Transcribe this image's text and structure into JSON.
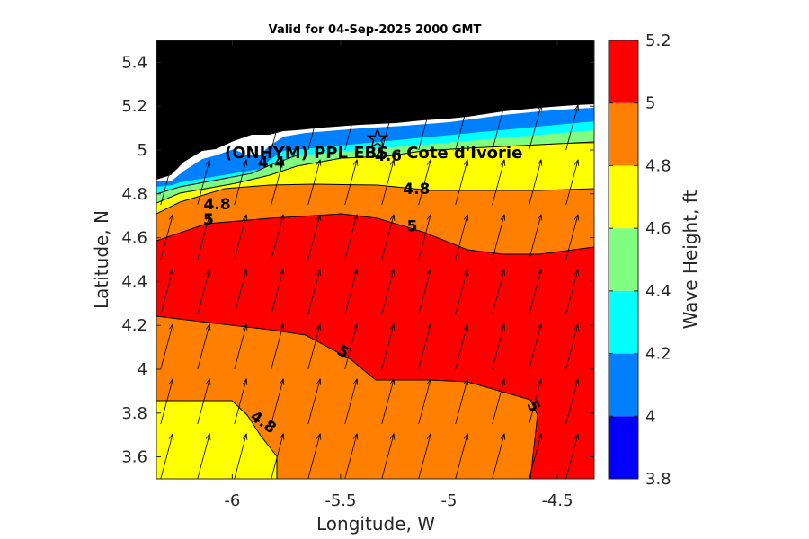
{
  "chart_data": {
    "type": "contourf",
    "title": "Valid for 04-Sep-2025 2000 GMT",
    "xlabel": "Longitude, W",
    "ylabel": "Latitude, N",
    "xlim": [
      -6.35,
      -4.33
    ],
    "ylim": [
      3.5,
      5.5
    ],
    "xticks": [
      -6,
      -5.5,
      -5,
      -4.5
    ],
    "xtick_labels": [
      "-6",
      "-5.5",
      "-5",
      "-4.5"
    ],
    "yticks": [
      3.6,
      3.8,
      4.0,
      4.2,
      4.4,
      4.6,
      4.8,
      5.0,
      5.2,
      5.4
    ],
    "ytick_labels": [
      "3.6",
      "3.8",
      "4",
      "4.2",
      "4.4",
      "4.6",
      "4.8",
      "5",
      "5.2",
      "5.4"
    ],
    "colorbar": {
      "label": "Wave Height, ft",
      "levels": [
        3.8,
        4.0,
        4.2,
        4.4,
        4.6,
        4.8,
        5.0,
        5.2
      ],
      "tick_labels": [
        "3.8",
        "4",
        "4.2",
        "4.4",
        "4.6",
        "4.8",
        "5",
        "5.2"
      ],
      "colors": [
        "#0000ff",
        "#0080ff",
        "#00ffff",
        "#80ff80",
        "#ffff00",
        "#ff8000",
        "#ff0000"
      ]
    },
    "land_color": "#000000",
    "contour_labels": [
      {
        "text": "4.4",
        "lon": -5.82,
        "lat": 4.92
      },
      {
        "text": "4.6",
        "lon": -5.28,
        "lat": 4.95
      },
      {
        "text": "4.8",
        "lon": -5.15,
        "lat": 4.8
      },
      {
        "text": "4.8",
        "lon": -6.07,
        "lat": 4.73
      },
      {
        "text": "5",
        "lon": -6.11,
        "lat": 4.66
      },
      {
        "text": "5",
        "lon": -5.17,
        "lat": 4.63
      },
      {
        "text": "5",
        "lon": -5.5,
        "lat": 4.06
      },
      {
        "text": "4.8",
        "lon": -5.87,
        "lat": 3.74
      },
      {
        "text": "5",
        "lon": -4.63,
        "lat": 3.82
      }
    ],
    "station": {
      "name": "(ONHYM) PPL EBS - Cote d'Ivorie",
      "lon": -5.33,
      "lat": 5.05
    },
    "vector_field": {
      "description": "wave direction arrows pointing NNE",
      "dx_lon": 0.17,
      "dy_lat": 0.25,
      "direction_deg": 15
    }
  }
}
